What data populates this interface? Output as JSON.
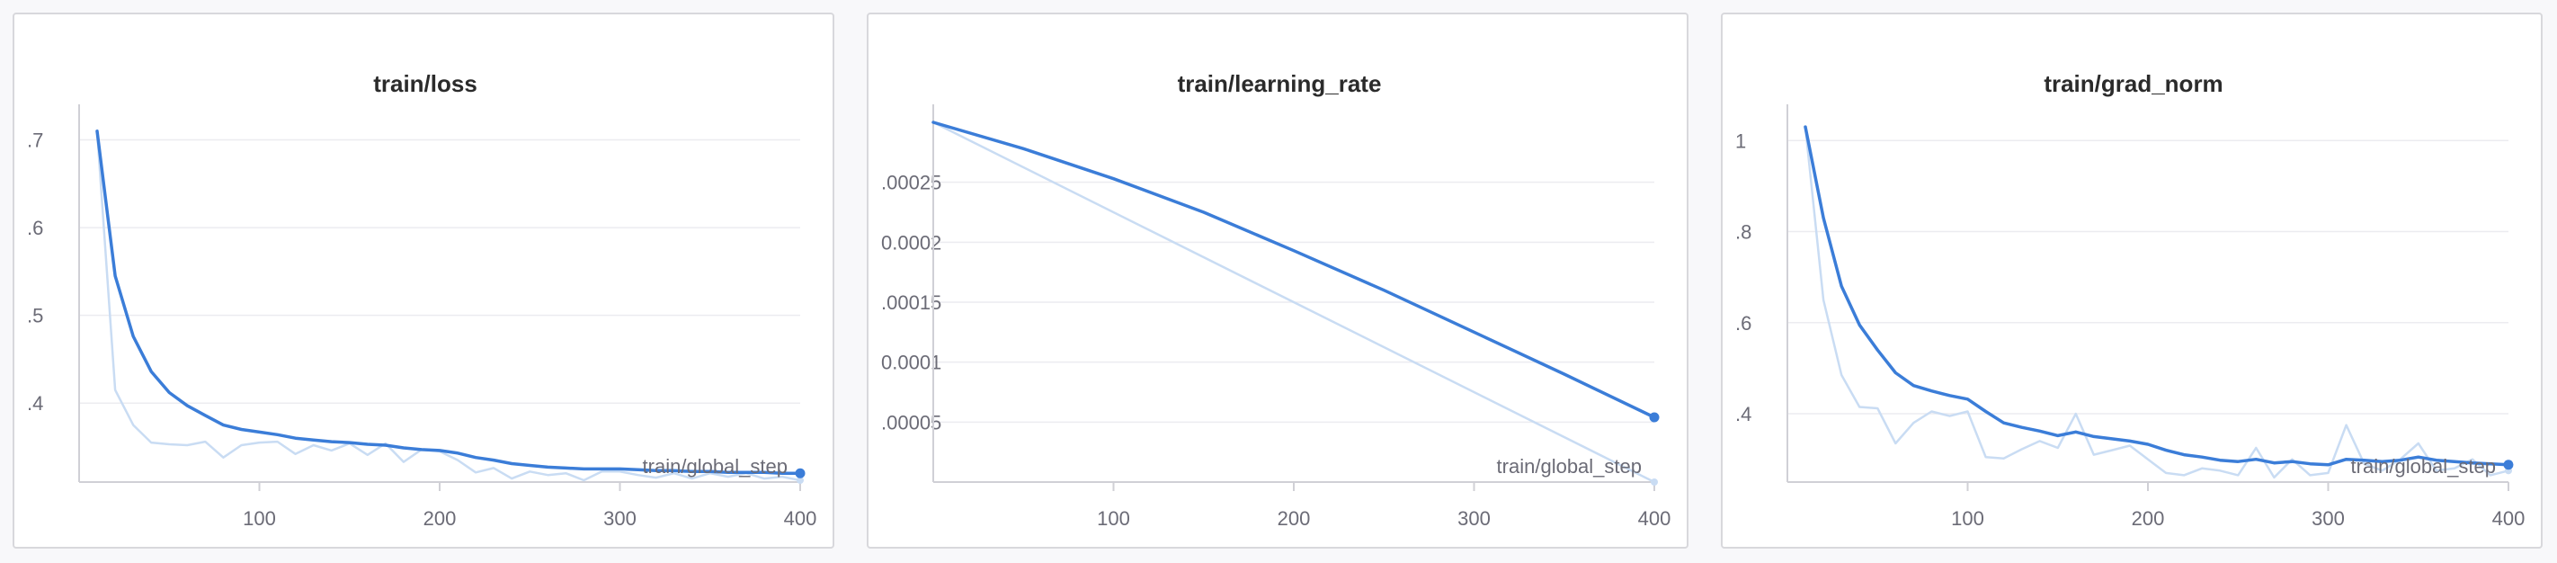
{
  "colors": {
    "smoothed": "#3b7dd8",
    "raw": "#c9dcf3"
  },
  "chart_data": [
    {
      "type": "line",
      "title": "train/loss",
      "xlabel": "train/global_step",
      "ylabel": "",
      "xlim": [
        0,
        400
      ],
      "ylim": [
        0.31,
        0.72
      ],
      "x_ticks": [
        100,
        200,
        300,
        400
      ],
      "x_tick_labels": [
        "100",
        "200",
        "300",
        "400"
      ],
      "y_ticks": [
        0.4,
        0.5,
        0.6,
        0.7
      ],
      "y_tick_labels": [
        ".4",
        ".5",
        ".6",
        ".7"
      ],
      "grid": true,
      "series": [
        {
          "role": "raw",
          "x": [
            10,
            20,
            30,
            40,
            50,
            60,
            70,
            80,
            90,
            100,
            110,
            120,
            130,
            140,
            150,
            160,
            170,
            180,
            190,
            200,
            210,
            220,
            230,
            240,
            250,
            260,
            270,
            280,
            290,
            300,
            310,
            320,
            330,
            340,
            350,
            360,
            370,
            380,
            390,
            400
          ],
          "y": [
            0.71,
            0.415,
            0.375,
            0.355,
            0.353,
            0.352,
            0.356,
            0.338,
            0.352,
            0.355,
            0.356,
            0.342,
            0.352,
            0.346,
            0.354,
            0.341,
            0.354,
            0.333,
            0.347,
            0.345,
            0.335,
            0.321,
            0.326,
            0.314,
            0.322,
            0.318,
            0.32,
            0.312,
            0.322,
            0.322,
            0.318,
            0.315,
            0.32,
            0.314,
            0.32,
            0.316,
            0.32,
            0.314,
            0.316,
            0.312
          ]
        },
        {
          "role": "smoothed",
          "x": [
            10,
            20,
            30,
            40,
            50,
            60,
            70,
            80,
            90,
            100,
            110,
            120,
            130,
            140,
            150,
            160,
            170,
            180,
            190,
            200,
            210,
            220,
            230,
            240,
            250,
            260,
            270,
            280,
            290,
            300,
            310,
            320,
            330,
            340,
            350,
            360,
            370,
            380,
            390,
            400
          ],
          "y": [
            0.71,
            0.545,
            0.476,
            0.436,
            0.412,
            0.397,
            0.386,
            0.375,
            0.37,
            0.367,
            0.364,
            0.36,
            0.358,
            0.356,
            0.355,
            0.353,
            0.352,
            0.349,
            0.347,
            0.346,
            0.343,
            0.338,
            0.335,
            0.331,
            0.329,
            0.327,
            0.326,
            0.325,
            0.325,
            0.325,
            0.324,
            0.323,
            0.323,
            0.322,
            0.322,
            0.321,
            0.321,
            0.321,
            0.32,
            0.32
          ]
        }
      ]
    },
    {
      "type": "line",
      "title": "train/learning_rate",
      "xlabel": "train/global_step",
      "ylabel": "",
      "xlim": [
        0,
        400
      ],
      "ylim": [
        0,
        0.0003
      ],
      "x_ticks": [
        100,
        200,
        300,
        400
      ],
      "x_tick_labels": [
        "100",
        "200",
        "300",
        "400"
      ],
      "y_ticks": [
        5e-05,
        0.0001,
        0.00015,
        0.0002,
        0.00025
      ],
      "y_tick_labels": [
        ".00005",
        "0.0001",
        ".00015",
        "0.0002",
        ".00025"
      ],
      "grid": true,
      "series": [
        {
          "role": "raw",
          "x": [
            0,
            400
          ],
          "y": [
            0.0003,
            0.0
          ]
        },
        {
          "role": "smoothed",
          "x": [
            0,
            50,
            100,
            150,
            200,
            250,
            300,
            350,
            400
          ],
          "y": [
            0.0003,
            0.000278,
            0.000253,
            0.000225,
            0.000193,
            0.00016,
            0.000125,
            9e-05,
            5.4e-05
          ]
        }
      ]
    },
    {
      "type": "line",
      "title": "train/grad_norm",
      "xlabel": "train/global_step",
      "ylabel": "",
      "xlim": [
        0,
        400
      ],
      "ylim": [
        0.25,
        1.04
      ],
      "x_ticks": [
        100,
        200,
        300,
        400
      ],
      "x_tick_labels": [
        "100",
        "200",
        "300",
        "400"
      ],
      "y_ticks": [
        0.4,
        0.6,
        0.8,
        1.0
      ],
      "y_tick_labels": [
        ".4",
        ".6",
        ".8",
        "1"
      ],
      "grid": true,
      "series": [
        {
          "role": "raw",
          "x": [
            10,
            20,
            30,
            40,
            50,
            60,
            70,
            80,
            90,
            100,
            110,
            120,
            130,
            140,
            150,
            160,
            170,
            180,
            190,
            200,
            210,
            220,
            230,
            240,
            250,
            260,
            270,
            280,
            290,
            300,
            310,
            320,
            330,
            340,
            350,
            360,
            370,
            380,
            390,
            400
          ],
          "y": [
            1.03,
            0.65,
            0.485,
            0.415,
            0.412,
            0.335,
            0.38,
            0.405,
            0.395,
            0.405,
            0.305,
            0.302,
            0.322,
            0.34,
            0.325,
            0.4,
            0.31,
            0.32,
            0.33,
            0.3,
            0.27,
            0.265,
            0.28,
            0.275,
            0.265,
            0.325,
            0.26,
            0.3,
            0.265,
            0.27,
            0.375,
            0.29,
            0.275,
            0.3,
            0.335,
            0.275,
            0.28,
            0.3,
            0.265,
            0.275
          ]
        },
        {
          "role": "smoothed",
          "x": [
            10,
            20,
            30,
            40,
            50,
            60,
            70,
            80,
            90,
            100,
            110,
            120,
            130,
            140,
            150,
            160,
            170,
            180,
            190,
            200,
            210,
            220,
            230,
            240,
            250,
            260,
            270,
            280,
            290,
            300,
            310,
            320,
            330,
            340,
            350,
            360,
            370,
            380,
            390,
            400
          ],
          "y": [
            1.03,
            0.83,
            0.68,
            0.595,
            0.54,
            0.49,
            0.462,
            0.45,
            0.44,
            0.432,
            0.405,
            0.38,
            0.37,
            0.362,
            0.352,
            0.36,
            0.35,
            0.345,
            0.34,
            0.333,
            0.32,
            0.31,
            0.305,
            0.298,
            0.295,
            0.3,
            0.292,
            0.295,
            0.29,
            0.288,
            0.3,
            0.298,
            0.295,
            0.298,
            0.305,
            0.298,
            0.295,
            0.292,
            0.29,
            0.288
          ]
        }
      ]
    }
  ]
}
